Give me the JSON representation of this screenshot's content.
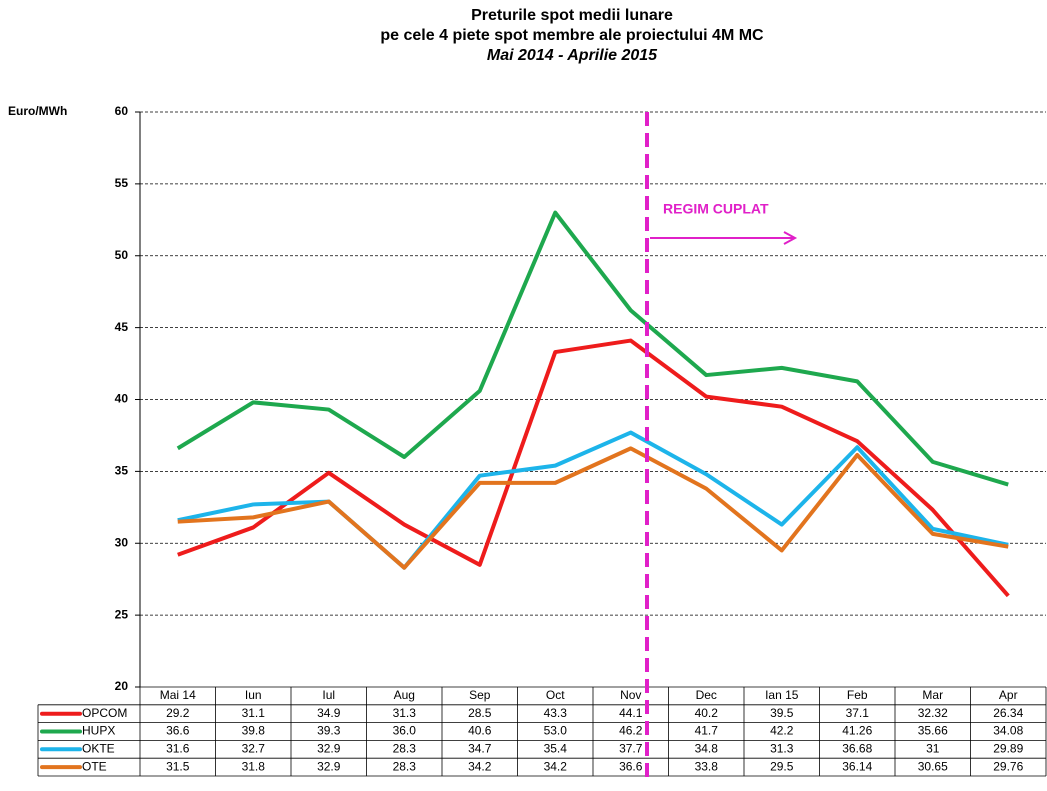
{
  "chart_data": {
    "type": "line",
    "title": [
      "Preturile spot medii lunare",
      "pe cele 4 piete spot membre ale proiectului 4M MC"
    ],
    "subtitle": "Mai 2014 - Aprilie 2015",
    "y_label": "Euro/MWh",
    "annotation": "REGIM CUPLAT",
    "categories": [
      "Mai 14",
      "Iun",
      "Iul",
      "Aug",
      "Sep",
      "Oct",
      "Nov",
      "Dec",
      "Ian 15",
      "Feb",
      "Mar",
      "Apr"
    ],
    "series": [
      {
        "name": "OPCOM",
        "color": "#ee1c1c",
        "values": [
          29.2,
          31.1,
          34.9,
          31.3,
          28.5,
          43.3,
          44.1,
          40.2,
          39.5,
          37.1,
          32.32,
          26.34
        ]
      },
      {
        "name": "HUPX",
        "color": "#1ea84e",
        "values": [
          36.6,
          39.8,
          39.3,
          36.0,
          40.6,
          53.0,
          46.2,
          41.7,
          42.2,
          41.26,
          35.66,
          34.08
        ],
        "value_labels": [
          "36.6",
          "39.8",
          "39.3",
          "36.0",
          "40.6",
          "53.0",
          "46.2",
          "41.7",
          "42.2",
          "41.26",
          "35.66",
          "34.08"
        ]
      },
      {
        "name": "OKTE",
        "color": "#1db4ea",
        "values": [
          31.6,
          32.7,
          32.9,
          28.3,
          34.7,
          35.4,
          37.7,
          34.8,
          31.3,
          36.68,
          31,
          29.89
        ]
      },
      {
        "name": "OTE",
        "color": "#e2741e",
        "values": [
          31.5,
          31.8,
          32.9,
          28.3,
          34.2,
          34.2,
          36.6,
          33.8,
          29.5,
          36.14,
          30.65,
          29.76
        ]
      }
    ],
    "ylim": [
      20,
      60
    ],
    "yticks": [
      20,
      25,
      30,
      35,
      40,
      45,
      50,
      55,
      60
    ],
    "grid": true
  }
}
